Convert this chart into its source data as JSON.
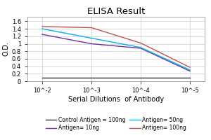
{
  "title": "ELISA Result",
  "ylabel": "O.D.",
  "xlabel": "Serial Dilutions  of Antibody",
  "x_values": [
    1,
    2,
    3,
    4
  ],
  "x_tick_labels": [
    "10^-2",
    "10^-3",
    "10^-4",
    "10^-5"
  ],
  "lines": [
    {
      "label": "Control Antigen = 100ng",
      "color": "#333333",
      "values": [
        0.1,
        0.1,
        0.1,
        0.1
      ]
    },
    {
      "label": "Antigen= 10ng",
      "color": "#7030a0",
      "values": [
        1.25,
        1.0,
        0.88,
        0.27
      ]
    },
    {
      "label": "Antigen= 50ng",
      "color": "#00b0f0",
      "values": [
        1.4,
        1.15,
        0.9,
        0.3
      ]
    },
    {
      "label": "Antigen= 100ng",
      "color": "#c0504d",
      "values": [
        1.46,
        1.43,
        1.02,
        0.37
      ]
    }
  ],
  "ylim": [
    0,
    1.72
  ],
  "yticks": [
    0,
    0.2,
    0.4,
    0.6,
    0.8,
    1.0,
    1.2,
    1.4,
    1.6
  ],
  "xlim": [
    0.7,
    4.3
  ],
  "background_color": "#ffffff",
  "grid_color": "#cccccc",
  "title_fontsize": 9.5,
  "label_fontsize": 7,
  "tick_fontsize": 6,
  "legend_fontsize": 5.5
}
